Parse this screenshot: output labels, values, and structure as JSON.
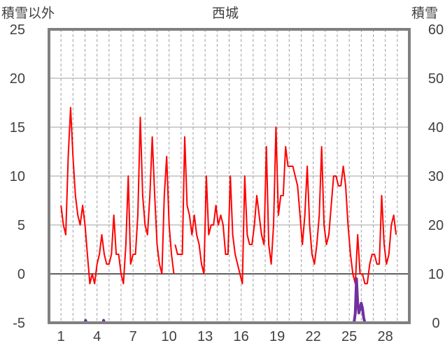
{
  "chart_data": {
    "type": "line",
    "title": "西城",
    "ylabel_left": "積雪以外",
    "ylabel_right": "積雪",
    "ylim_left": [
      -5,
      25
    ],
    "ylim_right": [
      0,
      60
    ],
    "yticks_left": [
      -5,
      0,
      5,
      10,
      15,
      20,
      25
    ],
    "yticks_right": [
      0,
      10,
      20,
      30,
      40,
      50,
      60
    ],
    "xlim": [
      0,
      30
    ],
    "xticks": [
      1,
      4,
      7,
      10,
      13,
      16,
      19,
      22,
      25,
      28
    ],
    "grid": true,
    "colors": {
      "temperature": "#ff0000",
      "snow": "#7030a0",
      "grid": "#a0a0a0",
      "zero_line": "#606060",
      "frame": "#808080"
    },
    "series": [
      {
        "axis": "left",
        "color": "#ff0000",
        "segments": [
          [
            [
              1.0,
              7
            ],
            [
              1.2,
              5
            ],
            [
              1.4,
              4
            ],
            [
              1.6,
              12
            ],
            [
              1.8,
              17
            ],
            [
              2.0,
              12
            ],
            [
              2.2,
              8
            ],
            [
              2.4,
              6
            ],
            [
              2.6,
              5
            ],
            [
              2.8,
              7
            ],
            [
              3.0,
              5
            ],
            [
              3.2,
              2
            ],
            [
              3.4,
              -1
            ],
            [
              3.6,
              0
            ],
            [
              3.8,
              -1
            ],
            [
              4.0,
              1
            ],
            [
              4.2,
              2
            ],
            [
              4.4,
              4
            ],
            [
              4.6,
              2
            ],
            [
              4.8,
              1
            ],
            [
              5.0,
              1
            ],
            [
              5.2,
              2
            ],
            [
              5.4,
              6
            ],
            [
              5.6,
              2
            ],
            [
              5.8,
              2
            ],
            [
              6.0,
              0
            ],
            [
              6.2,
              -1
            ],
            [
              6.4,
              3
            ],
            [
              6.6,
              10
            ],
            [
              6.8,
              1
            ],
            [
              7.0,
              2
            ],
            [
              7.2,
              2
            ],
            [
              7.4,
              6
            ],
            [
              7.6,
              16
            ],
            [
              7.8,
              8
            ],
            [
              8.0,
              5
            ],
            [
              8.2,
              4
            ],
            [
              8.4,
              8
            ],
            [
              8.6,
              14
            ],
            [
              8.8,
              8
            ],
            [
              9.0,
              3
            ],
            [
              9.2,
              1
            ],
            [
              9.4,
              0
            ],
            [
              9.6,
              8
            ],
            [
              9.8,
              12
            ],
            [
              10.0,
              5
            ],
            [
              10.2,
              2
            ],
            [
              10.4,
              0
            ]
          ],
          [
            [
              10.5,
              3
            ],
            [
              10.7,
              2
            ],
            [
              10.9,
              2
            ],
            [
              11.1,
              2
            ],
            [
              11.3,
              14
            ],
            [
              11.5,
              7
            ],
            [
              11.7,
              6
            ],
            [
              11.9,
              4
            ],
            [
              12.1,
              6
            ],
            [
              12.3,
              4
            ],
            [
              12.5,
              3
            ],
            [
              12.7,
              1
            ],
            [
              12.9,
              0
            ],
            [
              13.1,
              10
            ],
            [
              13.3,
              4
            ],
            [
              13.5,
              5
            ],
            [
              13.7,
              5
            ],
            [
              13.9,
              7
            ],
            [
              14.1,
              5
            ],
            [
              14.3,
              6
            ],
            [
              14.5,
              5
            ],
            [
              14.7,
              2
            ],
            [
              14.9,
              2
            ],
            [
              15.1,
              10
            ],
            [
              15.3,
              4
            ],
            [
              15.5,
              2
            ],
            [
              15.7,
              1
            ],
            [
              15.9,
              0
            ],
            [
              16.1,
              -1
            ],
            [
              16.3,
              10
            ],
            [
              16.5,
              4
            ],
            [
              16.7,
              3
            ],
            [
              16.9,
              3
            ],
            [
              17.1,
              5
            ],
            [
              17.3,
              8
            ],
            [
              17.5,
              6
            ],
            [
              17.7,
              4
            ],
            [
              17.9,
              3
            ],
            [
              18.1,
              13
            ],
            [
              18.3,
              3
            ],
            [
              18.5,
              1
            ],
            [
              18.7,
              5
            ],
            [
              18.9,
              15
            ],
            [
              19.1,
              6
            ],
            [
              19.3,
              8
            ],
            [
              19.5,
              8
            ],
            [
              19.7,
              13
            ],
            [
              19.9,
              11
            ],
            [
              20.1,
              11
            ],
            [
              20.3,
              11
            ],
            [
              20.5,
              10
            ],
            [
              20.7,
              9
            ],
            [
              20.9,
              6
            ],
            [
              21.1,
              3
            ],
            [
              21.3,
              6
            ],
            [
              21.5,
              11
            ],
            [
              21.7,
              5
            ],
            [
              21.9,
              2
            ],
            [
              22.1,
              1
            ],
            [
              22.3,
              3
            ],
            [
              22.5,
              6
            ],
            [
              22.7,
              13
            ],
            [
              22.9,
              5
            ],
            [
              23.1,
              3
            ],
            [
              23.3,
              4
            ],
            [
              23.5,
              7
            ],
            [
              23.7,
              10
            ],
            [
              23.9,
              10
            ],
            [
              24.1,
              9
            ],
            [
              24.3,
              9
            ],
            [
              24.5,
              11
            ],
            [
              24.7,
              9
            ],
            [
              24.9,
              5
            ],
            [
              25.1,
              2
            ],
            [
              25.3,
              0
            ],
            [
              25.5,
              -1
            ],
            [
              25.7,
              4
            ],
            [
              25.9,
              0
            ],
            [
              26.1,
              0
            ],
            [
              26.3,
              -1
            ],
            [
              26.5,
              -1
            ],
            [
              26.7,
              1
            ],
            [
              26.9,
              2
            ],
            [
              27.1,
              2
            ],
            [
              27.3,
              1
            ],
            [
              27.5,
              1
            ],
            [
              27.7,
              8
            ],
            [
              27.9,
              3
            ],
            [
              28.1,
              1
            ],
            [
              28.3,
              2
            ],
            [
              28.5,
              5
            ],
            [
              28.7,
              6
            ],
            [
              28.9,
              4
            ]
          ]
        ]
      },
      {
        "axis": "right",
        "color": "#7030a0",
        "segments": [
          [
            [
              0,
              0
            ],
            [
              3.0,
              0
            ],
            [
              3.05,
              0.5
            ],
            [
              3.1,
              0
            ],
            [
              4.5,
              0
            ],
            [
              4.55,
              0.5
            ],
            [
              4.6,
              0
            ],
            [
              25.4,
              0
            ],
            [
              25.5,
              2
            ],
            [
              25.6,
              9
            ],
            [
              25.7,
              4
            ],
            [
              25.8,
              2
            ],
            [
              25.9,
              3
            ],
            [
              26.0,
              4
            ],
            [
              26.1,
              3
            ],
            [
              26.2,
              1
            ],
            [
              26.3,
              0
            ],
            [
              30,
              0
            ]
          ]
        ]
      }
    ]
  }
}
